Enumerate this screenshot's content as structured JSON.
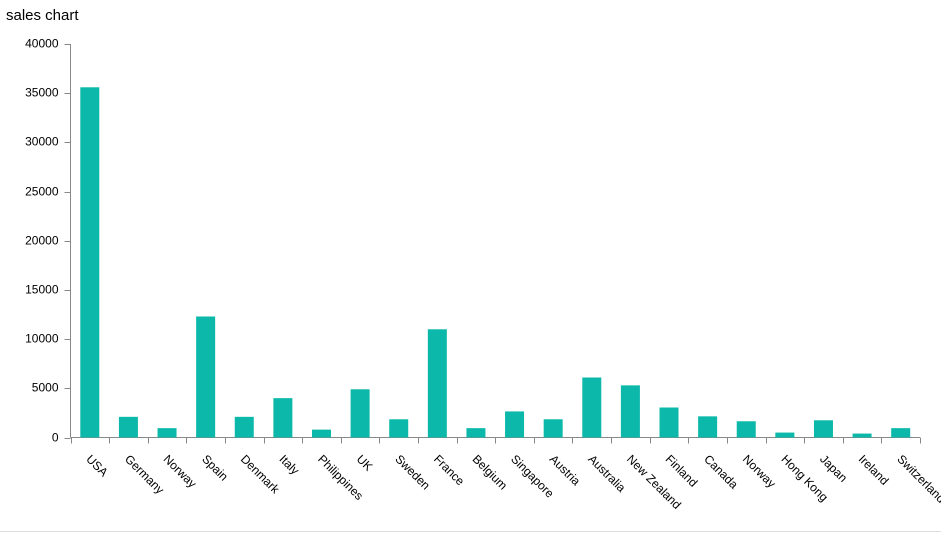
{
  "chart_data": {
    "type": "bar",
    "title": "sales chart",
    "categories": [
      "USA",
      "Germany",
      "Norway",
      "Spain",
      "Denmark",
      "Italy",
      "Philippines",
      "UK",
      "Sweden",
      "France",
      "Belgium",
      "Singapore",
      "Austria",
      "Australia",
      "New Zealand",
      "Finland",
      "Canada",
      "Norway",
      "Hong Kong",
      "Japan",
      "Ireland",
      "Switzerland"
    ],
    "values": [
      35600,
      2100,
      950,
      12300,
      2100,
      4000,
      800,
      4900,
      1850,
      11000,
      950,
      2650,
      1850,
      6100,
      5300,
      3050,
      2150,
      1650,
      500,
      1750,
      400,
      950
    ],
    "color": "#0bb8a9",
    "ylim": [
      0,
      40000
    ],
    "yticks": [
      0,
      5000,
      10000,
      15000,
      20000,
      25000,
      30000,
      35000,
      40000
    ],
    "grid": false
  }
}
